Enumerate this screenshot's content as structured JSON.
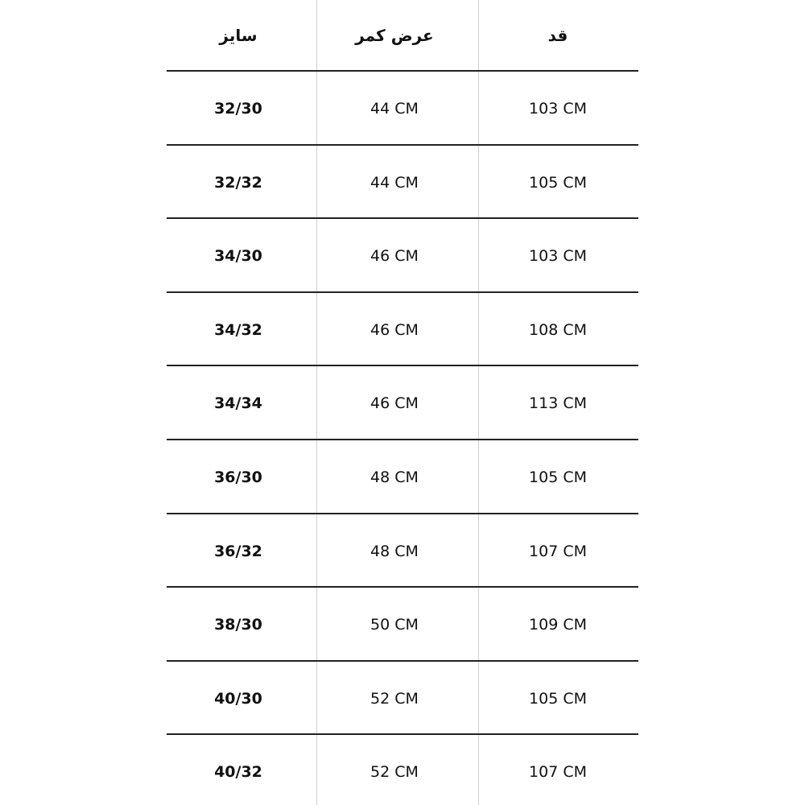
{
  "table": {
    "headers": [
      "سایز",
      "عرض کمر",
      "قد"
    ],
    "rows": [
      [
        "32/30",
        "44 CM",
        "103 CM"
      ],
      [
        "32/32",
        "44 CM",
        "105 CM"
      ],
      [
        "34/30",
        "46 CM",
        "103 CM"
      ],
      [
        "34/32",
        "46 CM",
        "108 CM"
      ],
      [
        "34/34",
        "46 CM",
        "113 CM"
      ],
      [
        "36/30",
        "48 CM",
        "105 CM"
      ],
      [
        "36/32",
        "48 CM",
        "107 CM"
      ],
      [
        "38/30",
        "50 CM",
        "109 CM"
      ],
      [
        "40/30",
        "52 CM",
        "105 CM"
      ],
      [
        "40/32",
        "52 CM",
        "107 CM"
      ]
    ]
  }
}
